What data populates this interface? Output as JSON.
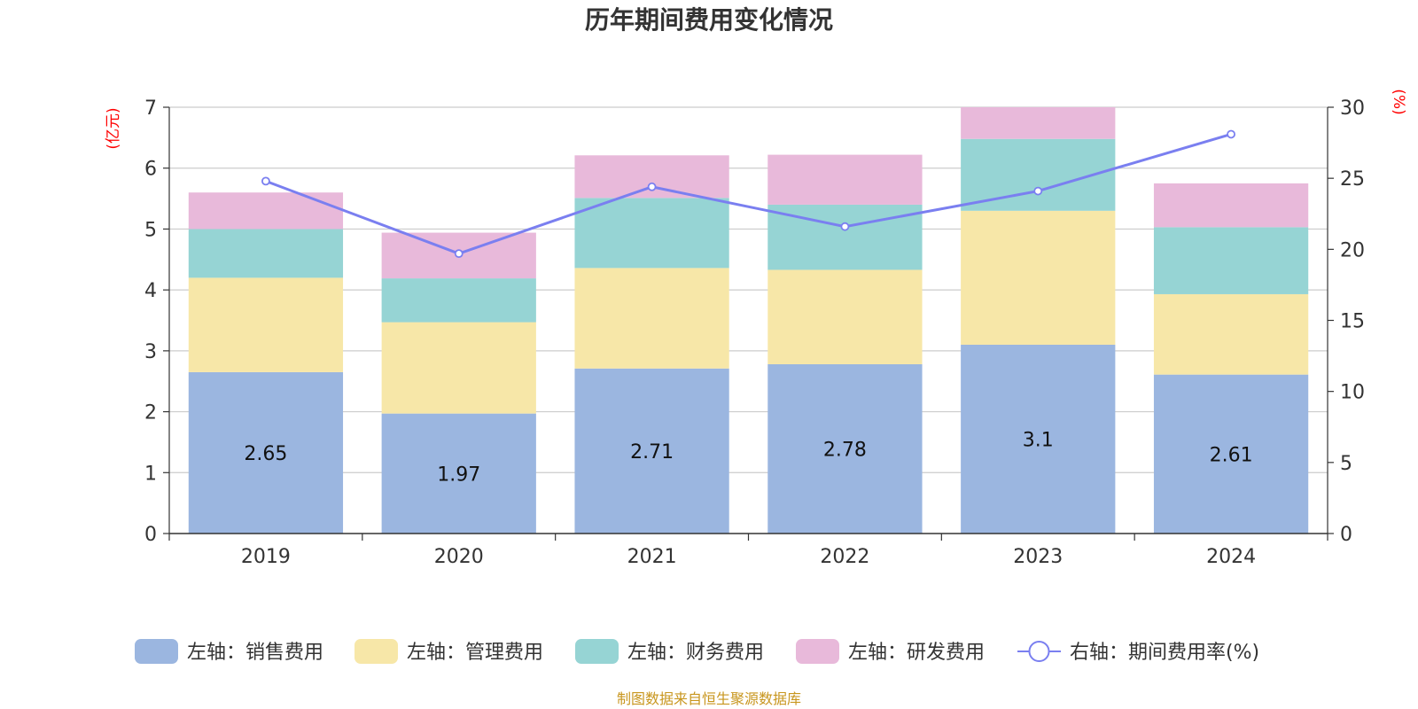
{
  "chart_data": {
    "type": "bar",
    "title": "历年期间费用变化情况",
    "categories": [
      "2019",
      "2020",
      "2021",
      "2022",
      "2023",
      "2024"
    ],
    "series": [
      {
        "name": "左轴：销售费用",
        "axis": "left",
        "type": "bar",
        "color": "#9bb6e0",
        "values": [
          2.65,
          1.97,
          2.71,
          2.78,
          3.1,
          2.61
        ],
        "labels": [
          "2.65",
          "1.97",
          "2.71",
          "2.78",
          "3.1",
          "2.61"
        ]
      },
      {
        "name": "左轴：管理费用",
        "axis": "left",
        "type": "bar",
        "color": "#f7e7a8",
        "values": [
          1.55,
          1.5,
          1.65,
          1.55,
          2.2,
          1.32
        ]
      },
      {
        "name": "左轴：财务费用",
        "axis": "left",
        "type": "bar",
        "color": "#96d4d4",
        "values": [
          0.8,
          0.72,
          1.15,
          1.07,
          1.18,
          1.1
        ]
      },
      {
        "name": "左轴：研发费用",
        "axis": "left",
        "type": "bar",
        "color": "#e8b9da",
        "values": [
          0.6,
          0.75,
          0.7,
          0.82,
          0.52,
          0.72
        ]
      },
      {
        "name": "右轴：期间费用率(%)",
        "axis": "right",
        "type": "line",
        "color": "#7a7ff0",
        "values": [
          24.8,
          19.7,
          24.4,
          21.6,
          24.1,
          28.1
        ]
      }
    ],
    "left_axis": {
      "label": "(亿元)",
      "ylim": [
        0,
        7
      ],
      "ticks": [
        "0",
        "1",
        "2",
        "3",
        "4",
        "5",
        "6",
        "7"
      ]
    },
    "right_axis": {
      "label": "(%)",
      "ylim": [
        0,
        30
      ],
      "ticks": [
        "0",
        "5",
        "10",
        "15",
        "20",
        "25",
        "30"
      ]
    },
    "grid": true,
    "legend_position": "bottom"
  },
  "footer": {
    "source": "制图数据来自恒生聚源数据库"
  }
}
